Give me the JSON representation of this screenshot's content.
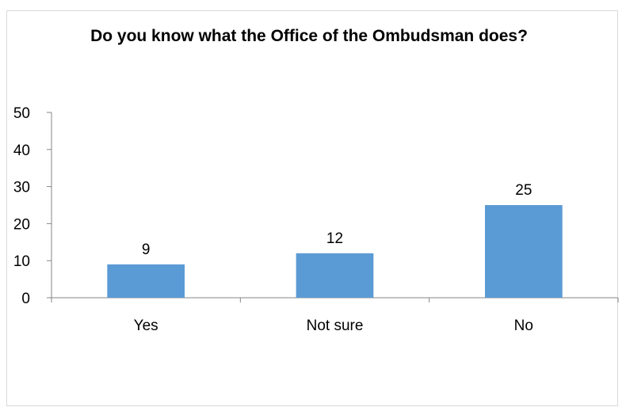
{
  "chart_data": {
    "type": "bar",
    "title": "Do you know what the Office of the Ombudsman does?",
    "categories": [
      "Yes",
      "Not sure",
      "No"
    ],
    "values": [
      9,
      12,
      25
    ],
    "ylim": [
      0,
      50
    ],
    "yticks": [
      0,
      10,
      20,
      30,
      40,
      50
    ],
    "xlabel": "",
    "ylabel": "",
    "grid": false,
    "legend": "none",
    "bar_color": "#5b9bd5",
    "axis_color": "#868686"
  }
}
